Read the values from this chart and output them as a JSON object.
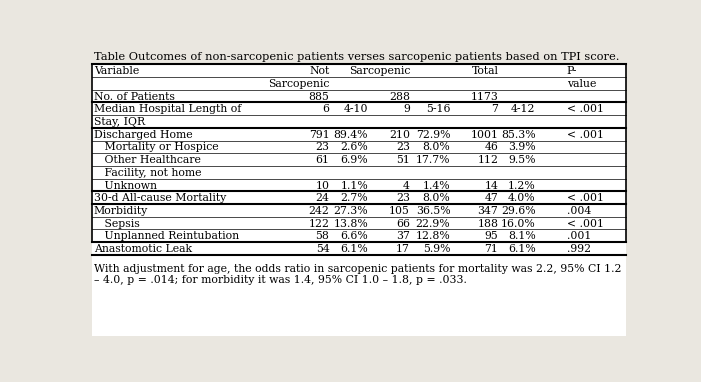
{
  "title": "Table Outcomes of non-sarcopenic patients verses sarcopenic patients based on TPI score.",
  "footer_line1": "With adjustment for age, the odds ratio in sarcopenic patients for mortality was 2.2, 95% CI 1.2",
  "footer_line2": "– 4.0, p = .014; for morbidity it was 1.4, 95% CI 1.0 – 1.8, p = .033.",
  "bg_color": "#eae7e0",
  "table_bg": "#ffffff",
  "font_size": 7.8,
  "title_font_size": 8.2,
  "footer_font_size": 7.8,
  "rows": [
    {
      "label": "Variable",
      "ns_n": "Not",
      "ns_p": "",
      "s_n": "Sarcopenic",
      "s_p": "",
      "t_n": "Total",
      "t_p": "",
      "pv": "P-",
      "bold": false,
      "header": true,
      "thick_top": true,
      "thick_bot": false
    },
    {
      "label": "",
      "ns_n": "Sarcopenic",
      "ns_p": "",
      "s_n": "",
      "s_p": "",
      "t_n": "",
      "t_p": "",
      "pv": "value",
      "bold": false,
      "header": true,
      "thick_top": false,
      "thick_bot": false
    },
    {
      "label": "No. of Patients",
      "ns_n": "885",
      "ns_p": "",
      "s_n": "288",
      "s_p": "",
      "t_n": "1173",
      "t_p": "",
      "pv": "",
      "bold": false,
      "header": true,
      "thick_top": false,
      "thick_bot": true
    },
    {
      "label": "Median Hospital Length of",
      "ns_n": "6",
      "ns_p": "4-10",
      "s_n": "9",
      "s_p": "5-16",
      "t_n": "7",
      "t_p": "4-12",
      "pv": "< .001",
      "bold": false,
      "header": false,
      "thick_top": false,
      "thick_bot": false
    },
    {
      "label": "Stay, IQR",
      "ns_n": "",
      "ns_p": "",
      "s_n": "",
      "s_p": "",
      "t_n": "",
      "t_p": "",
      "pv": "",
      "bold": false,
      "header": false,
      "thick_top": false,
      "thick_bot": true
    },
    {
      "label": "Discharged Home",
      "ns_n": "791",
      "ns_p": "89.4%",
      "s_n": "210",
      "s_p": "72.9%",
      "t_n": "1001",
      "t_p": "85.3%",
      "pv": "< .001",
      "bold": false,
      "header": false,
      "thick_top": false,
      "thick_bot": false
    },
    {
      "label": "   Mortality or Hospice",
      "ns_n": "23",
      "ns_p": "2.6%",
      "s_n": "23",
      "s_p": "8.0%",
      "t_n": "46",
      "t_p": "3.9%",
      "pv": "",
      "bold": false,
      "header": false,
      "thick_top": false,
      "thick_bot": false
    },
    {
      "label": "   Other Healthcare",
      "ns_n": "61",
      "ns_p": "6.9%",
      "s_n": "51",
      "s_p": "17.7%",
      "t_n": "112",
      "t_p": "9.5%",
      "pv": "",
      "bold": false,
      "header": false,
      "thick_top": false,
      "thick_bot": false
    },
    {
      "label": "   Facility, not home",
      "ns_n": "",
      "ns_p": "",
      "s_n": "",
      "s_p": "",
      "t_n": "",
      "t_p": "",
      "pv": "",
      "bold": false,
      "header": false,
      "thick_top": false,
      "thick_bot": false
    },
    {
      "label": "   Unknown",
      "ns_n": "10",
      "ns_p": "1.1%",
      "s_n": "4",
      "s_p": "1.4%",
      "t_n": "14",
      "t_p": "1.2%",
      "pv": "",
      "bold": false,
      "header": false,
      "thick_top": false,
      "thick_bot": true
    },
    {
      "label": "30-d All-cause Mortality",
      "ns_n": "24",
      "ns_p": "2.7%",
      "s_n": "23",
      "s_p": "8.0%",
      "t_n": "47",
      "t_p": "4.0%",
      "pv": "< .001",
      "bold": false,
      "header": false,
      "thick_top": false,
      "thick_bot": true
    },
    {
      "label": "Morbidity",
      "ns_n": "242",
      "ns_p": "27.3%",
      "s_n": "105",
      "s_p": "36.5%",
      "t_n": "347",
      "t_p": "29.6%",
      "pv": ".004",
      "bold": false,
      "header": false,
      "thick_top": false,
      "thick_bot": false
    },
    {
      "label": "   Sepsis",
      "ns_n": "122",
      "ns_p": "13.8%",
      "s_n": "66",
      "s_p": "22.9%",
      "t_n": "188",
      "t_p": "16.0%",
      "pv": "< .001",
      "bold": false,
      "header": false,
      "thick_top": false,
      "thick_bot": false
    },
    {
      "label": "   Unplanned Reintubation",
      "ns_n": "58",
      "ns_p": "6.6%",
      "s_n": "37",
      "s_p": "12.8%",
      "t_n": "95",
      "t_p": "8.1%",
      "pv": ".001",
      "bold": false,
      "header": false,
      "thick_top": false,
      "thick_bot": false
    },
    {
      "label": "Anastomotic Leak",
      "ns_n": "54",
      "ns_p": "6.1%",
      "s_n": "17",
      "s_p": "5.9%",
      "t_n": "71",
      "t_p": "6.1%",
      "pv": ".992",
      "bold": false,
      "header": false,
      "thick_top": false,
      "thick_bot": true
    }
  ]
}
